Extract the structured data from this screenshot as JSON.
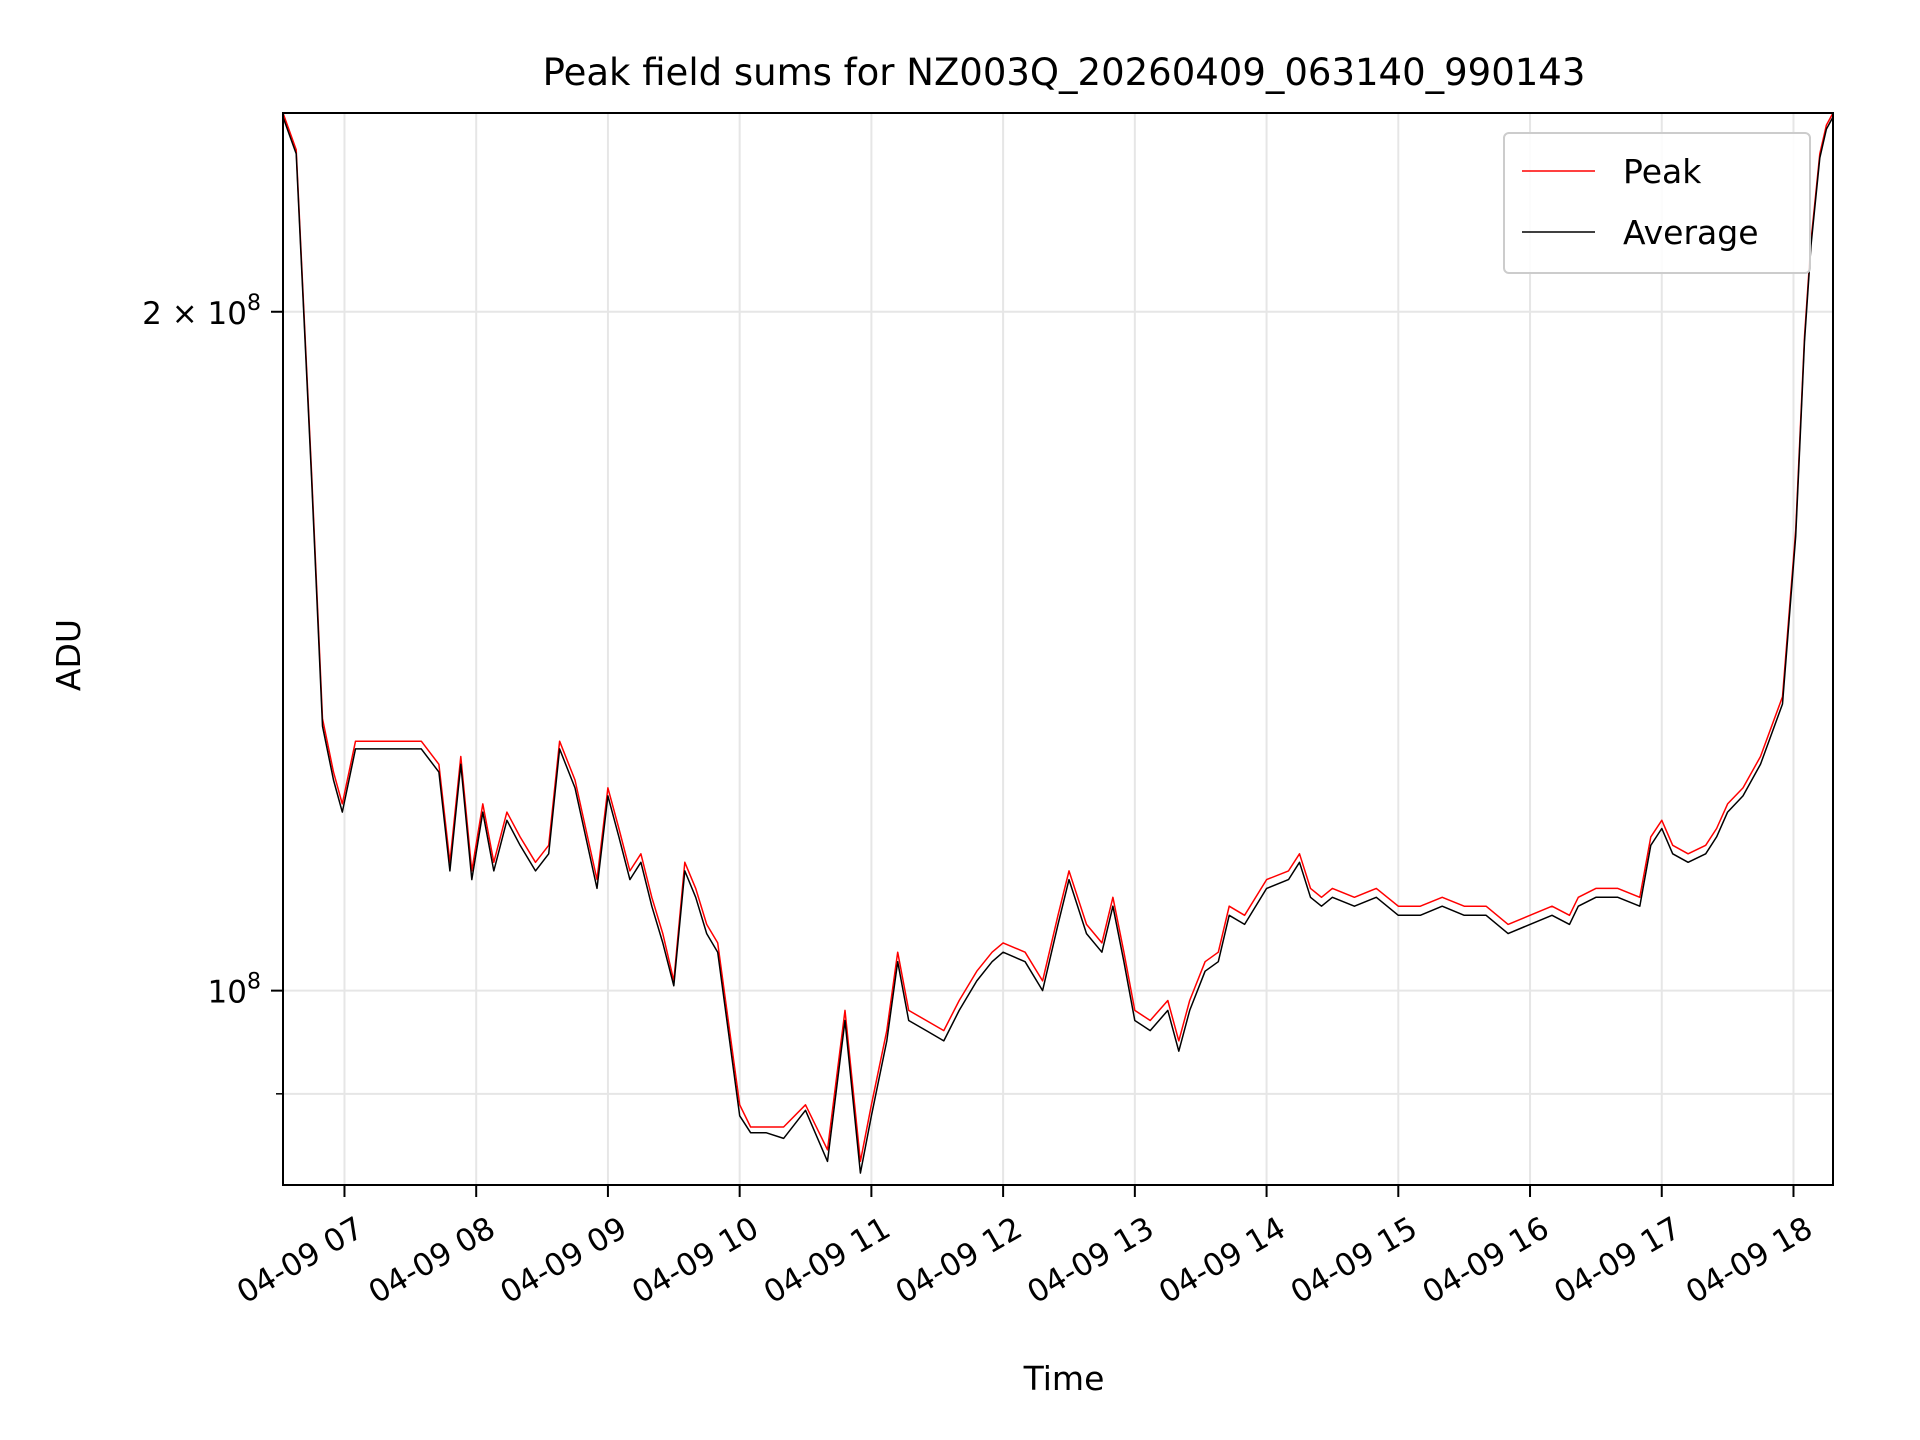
{
  "chart_data": {
    "type": "line",
    "title": "Peak field sums for NZ003Q_20260409_063140_990143",
    "xlabel": "Time",
    "ylabel": "ADU",
    "y_scale": "log",
    "x_range": [
      "04-09 06:32",
      "04-09 18:18"
    ],
    "ylim": [
      82000000,
      245000000
    ],
    "grid": true,
    "legend_position": "upper right",
    "x_ticks": [
      "04-09 07",
      "04-09 08",
      "04-09 09",
      "04-09 10",
      "04-09 11",
      "04-09 12",
      "04-09 13",
      "04-09 14",
      "04-09 15",
      "04-09 16",
      "04-09 17",
      "04-09 18"
    ],
    "y_ticks": [
      {
        "value": 200000000,
        "label": "2 × 10^8",
        "mantissa": "2 × 10",
        "exponent": "8"
      },
      {
        "value": 100000000,
        "label": "10^8",
        "mantissa": "10",
        "exponent": "8"
      }
    ],
    "x": [
      "04-09 06:32",
      "04-09 06:38",
      "04-09 06:45",
      "04-09 06:50",
      "04-09 06:55",
      "04-09 06:59",
      "04-09 07:05",
      "04-09 07:15",
      "04-09 07:25",
      "04-09 07:35",
      "04-09 07:43",
      "04-09 07:48",
      "04-09 07:53",
      "04-09 07:58",
      "04-09 08:03",
      "04-09 08:08",
      "04-09 08:14",
      "04-09 08:20",
      "04-09 08:27",
      "04-09 08:33",
      "04-09 08:38",
      "04-09 08:45",
      "04-09 08:55",
      "04-09 09:00",
      "04-09 09:05",
      "04-09 09:10",
      "04-09 09:15",
      "04-09 09:20",
      "04-09 09:25",
      "04-09 09:30",
      "04-09 09:35",
      "04-09 09:40",
      "04-09 09:45",
      "04-09 09:50",
      "04-09 10:00",
      "04-09 10:05",
      "04-09 10:12",
      "04-09 10:20",
      "04-09 10:30",
      "04-09 10:40",
      "04-09 10:48",
      "04-09 10:55",
      "04-09 11:00",
      "04-09 11:07",
      "04-09 11:12",
      "04-09 11:17",
      "04-09 11:25",
      "04-09 11:33",
      "04-09 11:40",
      "04-09 11:48",
      "04-09 11:55",
      "04-09 12:00",
      "04-09 12:10",
      "04-09 12:18",
      "04-09 12:25",
      "04-09 12:30",
      "04-09 12:38",
      "04-09 12:45",
      "04-09 12:50",
      "04-09 12:55",
      "04-09 13:00",
      "04-09 13:07",
      "04-09 13:15",
      "04-09 13:20",
      "04-09 13:25",
      "04-09 13:32",
      "04-09 13:38",
      "04-09 13:43",
      "04-09 13:50",
      "04-09 14:00",
      "04-09 14:10",
      "04-09 14:15",
      "04-09 14:20",
      "04-09 14:25",
      "04-09 14:30",
      "04-09 14:40",
      "04-09 14:50",
      "04-09 15:00",
      "04-09 15:10",
      "04-09 15:20",
      "04-09 15:30",
      "04-09 15:40",
      "04-09 15:50",
      "04-09 16:00",
      "04-09 16:10",
      "04-09 16:18",
      "04-09 16:22",
      "04-09 16:30",
      "04-09 16:40",
      "04-09 16:50",
      "04-09 16:55",
      "04-09 17:00",
      "04-09 17:05",
      "04-09 17:12",
      "04-09 17:20",
      "04-09 17:25",
      "04-09 17:30",
      "04-09 17:37",
      "04-09 17:45",
      "04-09 17:55",
      "04-09 18:01",
      "04-09 18:05",
      "04-09 18:08",
      "04-09 18:12",
      "04-09 18:15",
      "04-09 18:18"
    ],
    "series": [
      {
        "name": "Peak",
        "color": "#ff0000",
        "values": [
          245000000,
          236000000,
          170000000,
          132000000,
          125000000,
          121000000,
          129000000,
          129000000,
          129000000,
          129000000,
          126000000,
          114000000,
          127000000,
          113000000,
          121000000,
          114000000,
          120000000,
          117000000,
          114000000,
          116000000,
          129000000,
          124000000,
          112000000,
          123000000,
          118000000,
          113000000,
          115000000,
          110000000,
          106000000,
          101000000,
          114000000,
          111000000,
          107000000,
          105000000,
          89000000,
          87000000,
          87000000,
          87000000,
          89000000,
          85000000,
          98000000,
          84000000,
          89000000,
          96000000,
          104000000,
          98000000,
          97000000,
          96000000,
          99000000,
          102000000,
          104000000,
          105000000,
          104000000,
          101000000,
          108000000,
          113000000,
          107000000,
          105000000,
          110000000,
          104000000,
          98000000,
          97000000,
          99000000,
          95000000,
          99000000,
          103000000,
          104000000,
          109000000,
          108000000,
          112000000,
          113000000,
          115000000,
          111000000,
          110000000,
          111000000,
          110000000,
          111000000,
          109000000,
          109000000,
          110000000,
          109000000,
          109000000,
          107000000,
          108000000,
          109000000,
          108000000,
          110000000,
          111000000,
          111000000,
          110000000,
          117000000,
          119000000,
          116000000,
          115000000,
          116000000,
          118000000,
          121000000,
          123000000,
          127000000,
          135000000,
          160000000,
          195000000,
          215000000,
          235000000,
          242000000,
          245000000
        ]
      },
      {
        "name": "Average",
        "color": "#000000",
        "values": [
          244000000,
          235000000,
          169000000,
          131000000,
          124000000,
          120000000,
          128000000,
          128000000,
          128000000,
          128000000,
          125000000,
          113000000,
          126000000,
          112000000,
          120000000,
          113000000,
          119000000,
          116000000,
          113000000,
          115000000,
          128000000,
          123000000,
          111000000,
          122000000,
          117000000,
          112000000,
          114000000,
          109000000,
          105000000,
          100500000,
          113000000,
          110000000,
          106000000,
          104000000,
          88000000,
          86500000,
          86500000,
          86000000,
          88500000,
          84000000,
          97000000,
          83000000,
          88000000,
          95000000,
          103000000,
          97000000,
          96000000,
          95000000,
          98000000,
          101000000,
          103000000,
          104000000,
          103000000,
          100000000,
          107000000,
          112000000,
          106000000,
          104000000,
          109000000,
          103000000,
          97000000,
          96000000,
          98000000,
          94000000,
          98000000,
          102000000,
          103000000,
          108000000,
          107000000,
          111000000,
          112000000,
          114000000,
          110000000,
          109000000,
          110000000,
          109000000,
          110000000,
          108000000,
          108000000,
          109000000,
          108000000,
          108000000,
          106000000,
          107000000,
          108000000,
          107000000,
          109000000,
          110000000,
          110000000,
          109000000,
          116000000,
          118000000,
          115000000,
          114000000,
          115000000,
          117000000,
          120000000,
          122000000,
          126000000,
          134000000,
          159000000,
          194000000,
          214000000,
          234000000,
          241000000,
          244000000
        ]
      }
    ]
  }
}
